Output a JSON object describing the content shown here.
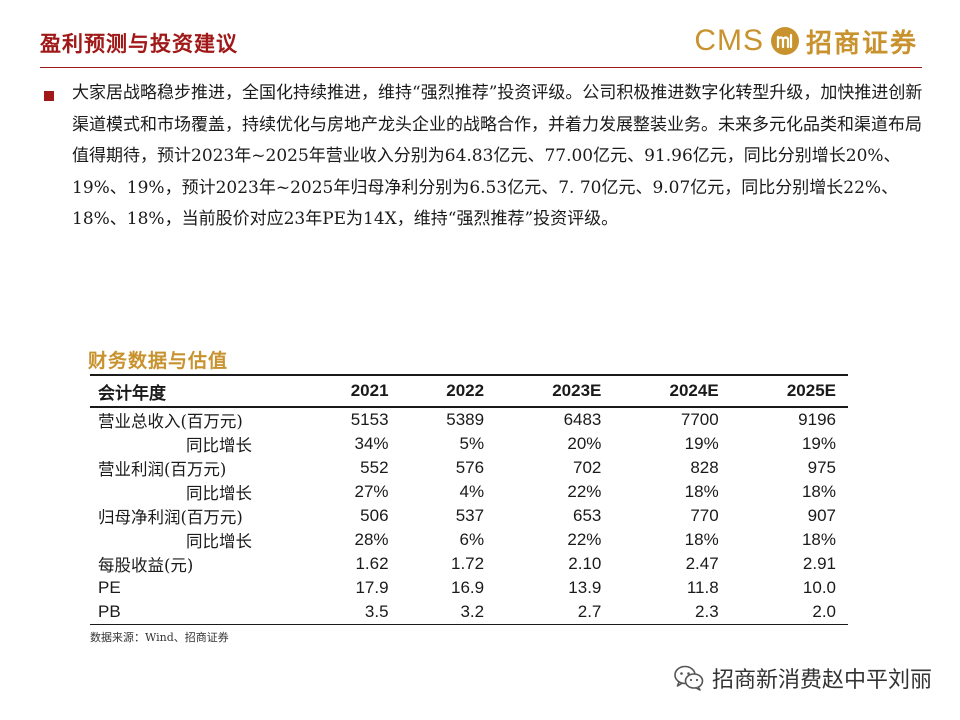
{
  "header": {
    "title": "盈利预测与投资建议",
    "logo_cms": "CMS",
    "logo_name": "招商证券"
  },
  "body": {
    "paragraph": "大家居战略稳步推进，全国化持续推进，维持“强烈推荐”投资评级。公司积极推进数字化转型升级，加快推进创新渠道模式和市场覆盖，持续优化与房地产龙头企业的战略合作，并着力发展整装业务。未来多元化品类和渠道布局值得期待，预计2023年~2025年营业收入分别为64.83亿元、77.00亿元、91.96亿元，同比分别增长20%、19%、19%，预计2023年~2025年归母净利分别为6.53亿元、7. 70亿元、9.07亿元，同比分别增长22%、18%、18%，当前股价对应23年PE为14X，维持“强烈推荐”投资评级。"
  },
  "table": {
    "title": "财务数据与估值",
    "header_label": "会计年度",
    "years": [
      "2021",
      "2022",
      "2023E",
      "2024E",
      "2025E"
    ],
    "rows": [
      {
        "label": "营业总收入(百万元)",
        "values": [
          "5153",
          "5389",
          "6483",
          "7700",
          "9196"
        ]
      },
      {
        "label": "同比增长",
        "values": [
          "34%",
          "5%",
          "20%",
          "19%",
          "19%"
        ]
      },
      {
        "label": "营业利润(百万元)",
        "values": [
          "552",
          "576",
          "702",
          "828",
          "975"
        ]
      },
      {
        "label": "同比增长",
        "values": [
          "27%",
          "4%",
          "22%",
          "18%",
          "18%"
        ]
      },
      {
        "label": "归母净利润(百万元)",
        "values": [
          "506",
          "537",
          "653",
          "770",
          "907"
        ]
      },
      {
        "label": "同比增长",
        "values": [
          "28%",
          "6%",
          "22%",
          "18%",
          "18%"
        ]
      },
      {
        "label": "每股收益(元)",
        "values": [
          "1.62",
          "1.72",
          "2.10",
          "2.47",
          "2.91"
        ]
      },
      {
        "label": "PE",
        "values": [
          "17.9",
          "16.9",
          "13.9",
          "11.8",
          "10.0"
        ]
      },
      {
        "label": "PB",
        "values": [
          "3.5",
          "3.2",
          "2.7",
          "2.3",
          "2.0"
        ]
      }
    ],
    "source": "数据来源：Wind、招商证券"
  },
  "watermark": {
    "text": "招商新消费赵中平刘丽",
    "icon": "wechat-icon"
  },
  "colors": {
    "title_red": "#a01818",
    "brand_gold": "#c8932e",
    "text": "#1a1a1a"
  }
}
